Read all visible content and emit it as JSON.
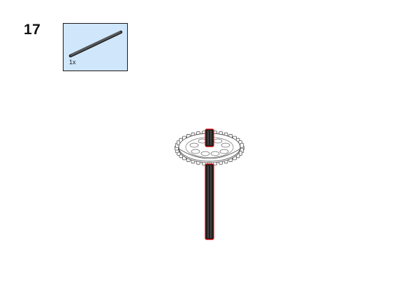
{
  "step": {
    "number": "17"
  },
  "parts_list": {
    "items": [
      {
        "icon": "axle-part-icon",
        "quantity": "1x"
      }
    ],
    "background_color": "#cfe6fb"
  },
  "assembly": {
    "parts": [
      "gear-icon",
      "axle-icon"
    ],
    "highlight_color": "#e00000"
  }
}
